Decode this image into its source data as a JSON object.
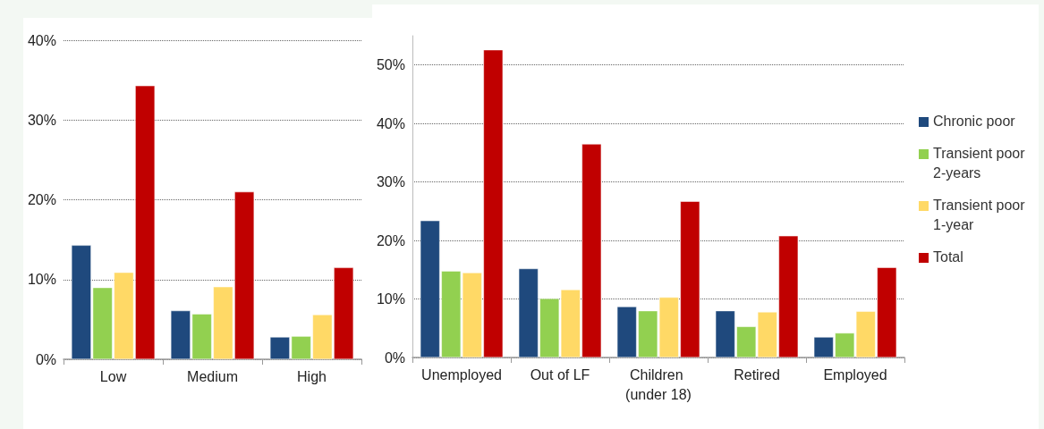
{
  "chart_data": [
    {
      "type": "bar",
      "categories": [
        "Low",
        "Medium",
        "High"
      ],
      "series": [
        {
          "color": "#1f497d",
          "values": [
            14.3,
            6.1,
            2.8
          ]
        },
        {
          "color": "#92d050",
          "values": [
            9.0,
            5.7,
            2.9
          ]
        },
        {
          "color": "#ffd966",
          "values": [
            10.9,
            9.1,
            5.6
          ]
        },
        {
          "color": "#c00000",
          "values": [
            34.3,
            21.0,
            11.5
          ]
        }
      ],
      "ylim": [
        0,
        40
      ],
      "yticks": [
        {
          "value": 0,
          "label": "0%"
        },
        {
          "value": 10,
          "label": "10%"
        },
        {
          "value": 20,
          "label": "20%"
        },
        {
          "value": 30,
          "label": "30%"
        },
        {
          "value": 40,
          "label": "40%"
        }
      ],
      "grid": "y",
      "legend": false
    },
    {
      "type": "bar",
      "categories": [
        "Unemployed",
        "Out of LF",
        "Children (under 18)",
        "Retired",
        "Employed"
      ],
      "series": [
        {
          "name": "Chronic poor",
          "color": "#1f497d",
          "values": [
            23.4,
            15.2,
            8.7,
            8.0,
            3.5
          ]
        },
        {
          "name": "Transient poor 2-years",
          "color": "#92d050",
          "values": [
            14.8,
            10.1,
            8.0,
            5.3,
            4.2
          ]
        },
        {
          "name": "Transient poor 1-year",
          "color": "#ffd966",
          "values": [
            14.5,
            11.6,
            10.3,
            7.8,
            7.9
          ]
        },
        {
          "name": "Total",
          "color": "#c00000",
          "values": [
            52.6,
            36.5,
            26.7,
            20.8,
            15.4
          ]
        }
      ],
      "ylim": [
        0,
        55
      ],
      "yticks": [
        {
          "value": 0,
          "label": "0%"
        },
        {
          "value": 10,
          "label": "10%"
        },
        {
          "value": 20,
          "label": "20%"
        },
        {
          "value": 30,
          "label": "30%"
        },
        {
          "value": 40,
          "label": "40%"
        },
        {
          "value": 50,
          "label": "50%"
        }
      ],
      "grid": "y",
      "legend": "right"
    }
  ]
}
